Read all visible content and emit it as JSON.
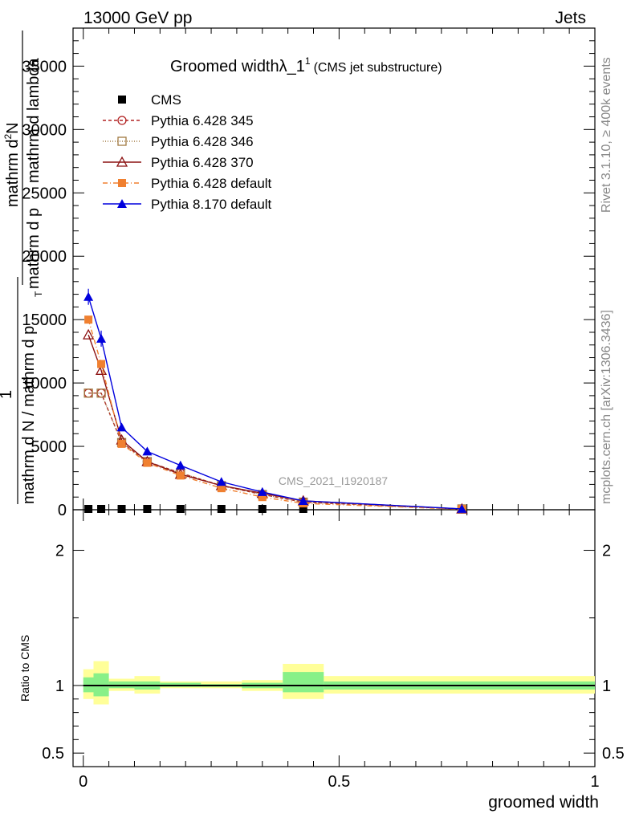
{
  "header": {
    "left": "13000 GeV pp",
    "right": "Jets"
  },
  "title": {
    "main": "Groomed width",
    "symbol": "λ_1",
    "superscript": "1",
    "sub": "(CMS jet substructure)"
  },
  "side": {
    "rivet": "Rivet 3.1.10, ≥ 400k events",
    "mcplots": "mcplots.cern.ch [arXiv:1306.3436]"
  },
  "watermark": "CMS_2021_I1920187",
  "ylabel_main": {
    "numerator_top": "mathrm d",
    "numerator_sup": "2",
    "numerator_rest": "N",
    "one": "1",
    "denominator_a": "mathrm d p",
    "denominator_b": "mathrm d lambda",
    "full_bottom": "mathrm d N / mathrm d p",
    "sub_T": "T"
  },
  "ylabel_ratio": "Ratio to CMS",
  "xlabel": "groomed width",
  "chart_data": [
    {
      "type": "line",
      "panel": "main",
      "xlim": [
        -0.02,
        1.0
      ],
      "ylim": [
        0,
        38000
      ],
      "y_ticks": [
        0,
        5000,
        10000,
        15000,
        20000,
        25000,
        30000,
        35000
      ],
      "y_tick_labels": [
        "0",
        "5000",
        "10000",
        "15000",
        "20000",
        "25000",
        "30000",
        "35000"
      ],
      "legend_position": "top-left",
      "series": [
        {
          "name": "CMS",
          "color": "#000000",
          "marker": "square-filled",
          "x": [
            0.01,
            0.035,
            0.075,
            0.125,
            0.19,
            0.27,
            0.35,
            0.43,
            0.74
          ],
          "y": [
            40,
            40,
            40,
            40,
            40,
            40,
            40,
            40,
            0
          ]
        },
        {
          "name": "Pythia 6.428 345",
          "color": "#b22222",
          "marker": "circle-open",
          "dash": "4,3",
          "x": [
            0.01,
            0.035,
            0.075,
            0.125,
            0.19,
            0.27,
            0.35,
            0.43,
            0.74
          ],
          "y": [
            9200,
            9200,
            5300,
            3800,
            2900,
            1900,
            1200,
            600,
            50
          ]
        },
        {
          "name": "Pythia 6.428 346",
          "color": "#a07840",
          "marker": "square-open",
          "dash": "1,2",
          "x": [
            0.01,
            0.035,
            0.075,
            0.125,
            0.19,
            0.27,
            0.35,
            0.43,
            0.74
          ],
          "y": [
            9200,
            9200,
            5300,
            3800,
            2900,
            1900,
            1200,
            600,
            50
          ]
        },
        {
          "name": "Pythia 6.428 370",
          "color": "#8b1010",
          "marker": "triangle-open",
          "dash": "",
          "x": [
            0.01,
            0.035,
            0.075,
            0.125,
            0.19,
            0.27,
            0.35,
            0.43,
            0.74
          ],
          "y": [
            13800,
            11000,
            5500,
            3800,
            2800,
            1900,
            1300,
            700,
            60
          ]
        },
        {
          "name": "Pythia 6.428 default",
          "color": "#f08030",
          "marker": "square-filled",
          "dash": "6,3,1,3",
          "x": [
            0.01,
            0.035,
            0.075,
            0.125,
            0.19,
            0.27,
            0.35,
            0.43,
            0.74
          ],
          "y": [
            15000,
            11500,
            5200,
            3700,
            2700,
            1700,
            1000,
            500,
            40
          ]
        },
        {
          "name": "Pythia 8.170 default",
          "color": "#0000dd",
          "marker": "triangle-filled",
          "dash": "",
          "x": [
            0.01,
            0.035,
            0.075,
            0.125,
            0.19,
            0.27,
            0.35,
            0.43,
            0.74
          ],
          "y": [
            16800,
            13500,
            6500,
            4600,
            3500,
            2200,
            1400,
            700,
            70
          ]
        }
      ]
    },
    {
      "type": "area",
      "panel": "ratio",
      "xlim": [
        -0.02,
        1.0
      ],
      "ylim": [
        0.4,
        2.3
      ],
      "y_ticks": [
        0.5,
        1,
        2
      ],
      "y_tick_labels": [
        "0.5",
        "1",
        "2"
      ],
      "x_ticks": [
        0,
        0.5,
        1
      ],
      "x_tick_labels": [
        "0",
        "0.5",
        "1"
      ],
      "bins": [
        {
          "x0": 0.0,
          "x1": 0.02,
          "inner": [
            0.95,
            1.06
          ],
          "outer": [
            0.9,
            1.12
          ]
        },
        {
          "x0": 0.02,
          "x1": 0.05,
          "inner": [
            0.92,
            1.09
          ],
          "outer": [
            0.86,
            1.18
          ]
        },
        {
          "x0": 0.05,
          "x1": 0.1,
          "inner": [
            0.98,
            1.03
          ],
          "outer": [
            0.96,
            1.05
          ]
        },
        {
          "x0": 0.1,
          "x1": 0.15,
          "inner": [
            0.97,
            1.03
          ],
          "outer": [
            0.94,
            1.07
          ]
        },
        {
          "x0": 0.15,
          "x1": 0.23,
          "inner": [
            0.99,
            1.02
          ],
          "outer": [
            0.98,
            1.03
          ]
        },
        {
          "x0": 0.23,
          "x1": 0.31,
          "inner": [
            0.99,
            1.01
          ],
          "outer": [
            0.98,
            1.03
          ]
        },
        {
          "x0": 0.31,
          "x1": 0.39,
          "inner": [
            0.98,
            1.02
          ],
          "outer": [
            0.96,
            1.04
          ]
        },
        {
          "x0": 0.39,
          "x1": 0.47,
          "inner": [
            0.95,
            1.1
          ],
          "outer": [
            0.9,
            1.16
          ]
        },
        {
          "x0": 0.47,
          "x1": 1.0,
          "inner": [
            0.97,
            1.03
          ],
          "outer": [
            0.94,
            1.07
          ]
        }
      ],
      "ref_line": 1
    }
  ]
}
